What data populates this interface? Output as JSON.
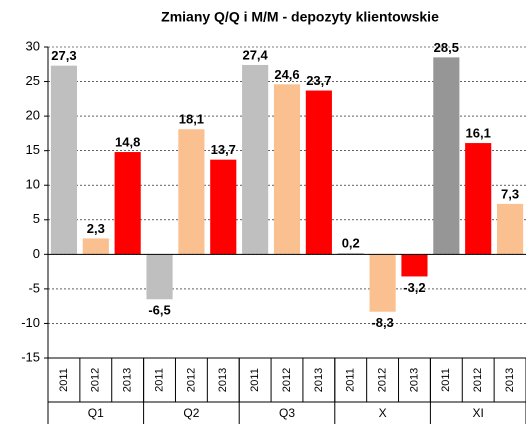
{
  "chart_data": {
    "type": "bar",
    "title": "Zmiany Q/Q i M/M - depozyty klientowskie",
    "categories": [
      "Q1",
      "Q2",
      "Q3",
      "X",
      "XI"
    ],
    "series": [
      {
        "name": "2011",
        "colors": [
          "#bfbfbf",
          "#bfbfbf",
          "#bfbfbf",
          "#bfbfbf",
          "#969696"
        ],
        "values": [
          27.3,
          -6.5,
          27.4,
          0.2,
          28.5
        ],
        "value_labels": [
          "27,3",
          "-6,5",
          "27,4",
          "0,2",
          "28,5"
        ]
      },
      {
        "name": "2012",
        "colors": [
          "#fac090",
          "#fac090",
          "#fac090",
          "#fac090",
          "#ff0000"
        ],
        "values": [
          2.3,
          18.1,
          24.6,
          -8.3,
          16.1
        ],
        "value_labels": [
          "2,3",
          "18,1",
          "24,6",
          "-8,3",
          "16,1"
        ]
      },
      {
        "name": "2013",
        "colors": [
          "#ff0000",
          "#ff0000",
          "#ff0000",
          "#ff0000",
          "#fac090"
        ],
        "values": [
          14.8,
          13.7,
          23.7,
          -3.2,
          7.3
        ],
        "value_labels": [
          "14,8",
          "13,7",
          "23,7",
          "-3,2",
          "7,3"
        ]
      }
    ],
    "ylim": [
      -15,
      30
    ],
    "yticks": [
      -15,
      -10,
      -5,
      0,
      5,
      10,
      15,
      20,
      25,
      30
    ],
    "grid": true
  }
}
